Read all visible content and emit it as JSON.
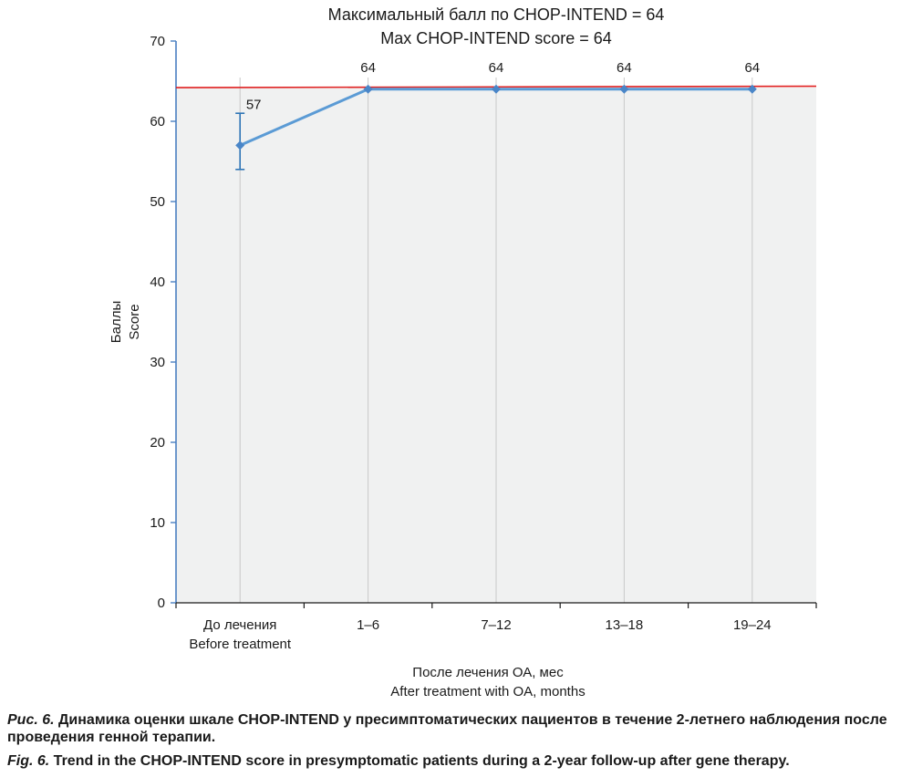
{
  "chart_data": {
    "type": "line",
    "title_lines": [
      "Максимальный балл по CHOP-INTEND = 64",
      "Max CHOP-INTEND score = 64"
    ],
    "ylabel_lines": [
      "Баллы",
      "Score"
    ],
    "xlabel_lines": [
      "После лечения ОА, мес",
      "After treatment with OA, months"
    ],
    "ylim": [
      0,
      70
    ],
    "yticks": [
      0,
      10,
      20,
      30,
      40,
      50,
      60,
      70
    ],
    "categories": [
      [
        "До лечения",
        "Before treatment"
      ],
      [
        "1–6"
      ],
      [
        "7–12"
      ],
      [
        "13–18"
      ],
      [
        "19–24"
      ]
    ],
    "series": [
      {
        "values": [
          57,
          64,
          64,
          64,
          64
        ],
        "data_labels": [
          "57",
          "64",
          "64",
          "64",
          "64"
        ],
        "error": [
          [
            54,
            61
          ],
          null,
          null,
          null,
          null
        ]
      }
    ],
    "reference_line": {
      "value": 64.2
    },
    "grid": "vertical",
    "colors": {
      "series": "#5b9bd5",
      "reference": "#e02020",
      "plot_bg": "#f0f1f1",
      "axis": "#4a7fc1",
      "grid": "#c9c9c9"
    }
  },
  "caption": {
    "ru_label": "Рис. 6.",
    "ru_text": " Динамика оценки шкале CHOP-INTEND у пресимптоматических пациентов в течение 2-летнего наблюдения после проведения генной терапии.",
    "en_label": "Fig. 6.",
    "en_text": " Trend in the CHOP-INTEND score in presymptomatic patients during a 2-year follow-up after gene therapy."
  }
}
